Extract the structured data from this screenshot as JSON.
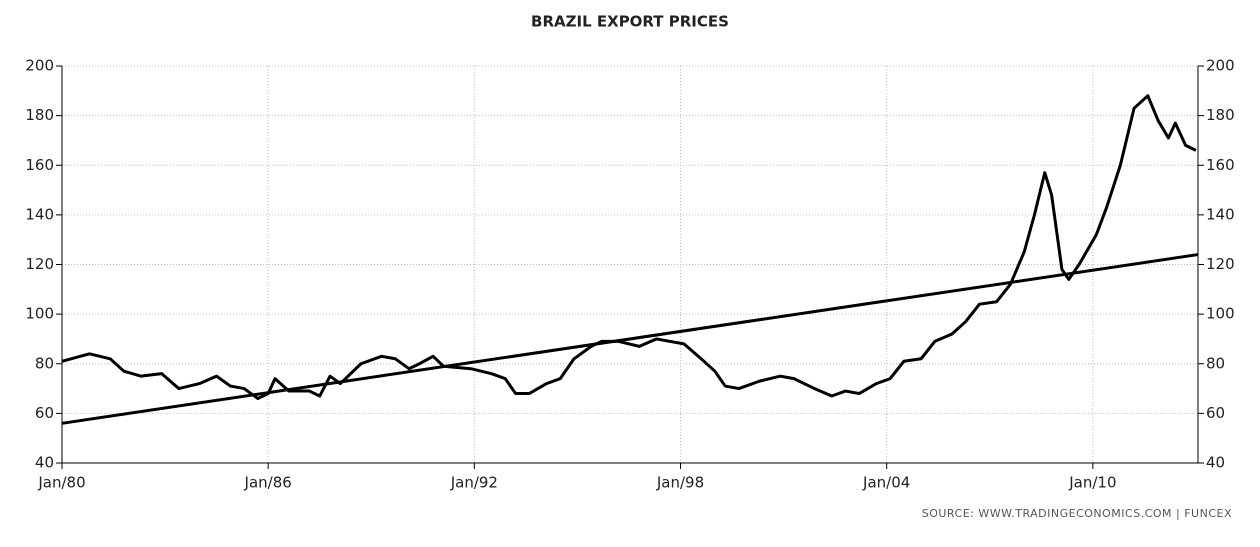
{
  "chart_data": {
    "type": "line",
    "title": "BRAZIL EXPORT PRICES",
    "source": "SOURCE:  WWW.TRADINGECONOMICS.COM  |  FUNCEX",
    "xlim": [
      1980,
      2013.06
    ],
    "xticks": [
      {
        "value": 1980,
        "label": "Jan/80"
      },
      {
        "value": 1986,
        "label": "Jan/86"
      },
      {
        "value": 1992,
        "label": "Jan/92"
      },
      {
        "value": 1998,
        "label": "Jan/98"
      },
      {
        "value": 2004,
        "label": "Jan/04"
      },
      {
        "value": 2010,
        "label": "Jan/10"
      }
    ],
    "ylim": [
      40,
      200
    ],
    "yticks": [
      40,
      60,
      80,
      100,
      120,
      140,
      160,
      180,
      200
    ],
    "y2lim": [
      40,
      200
    ],
    "y2ticks": [
      40,
      60,
      80,
      100,
      120,
      140,
      160,
      180,
      200
    ],
    "grid": true,
    "series": [
      {
        "color": "#000000",
        "x": [
          1980,
          1980.8,
          1981.4,
          1981.8,
          1982.3,
          1982.9,
          1983.4,
          1984.0,
          1984.5,
          1984.9,
          1985.3,
          1985.7,
          1986.0,
          1986.2,
          1986.6,
          1987.2,
          1987.5,
          1987.8,
          1988.1,
          1988.7,
          1989.3,
          1989.7,
          1990.1,
          1990.4,
          1990.8,
          1991.1,
          1991.9,
          1992.5,
          1992.9,
          1993.2,
          1993.6,
          1994.1,
          1994.5,
          1994.9,
          1995.4,
          1995.7,
          1996.2,
          1996.8,
          1997.3,
          1997.7,
          1998.1,
          1998.6,
          1999.0,
          1999.3,
          1999.7,
          2000.3,
          2000.9,
          2001.3,
          2001.9,
          2002.4,
          2002.8,
          2003.2,
          2003.7,
          2004.1,
          2004.5,
          2005.0,
          2005.4,
          2005.9,
          2006.3,
          2006.7,
          2007.2,
          2007.6,
          2008.0,
          2008.3,
          2008.6,
          2008.8,
          2009.1,
          2009.3,
          2009.6,
          2010.1,
          2010.4,
          2010.8,
          2011.2,
          2011.6,
          2011.9,
          2012.2,
          2012.4,
          2012.7,
          2013.0
        ],
        "values": [
          81,
          84,
          82,
          77,
          75,
          76,
          70,
          72,
          75,
          71,
          70,
          66,
          68,
          74,
          69,
          69,
          67,
          75,
          72,
          80,
          83,
          82,
          78,
          80,
          83,
          79,
          78,
          76,
          74,
          68,
          68,
          72,
          74,
          82,
          87,
          89,
          89,
          87,
          90,
          89,
          88,
          82,
          77,
          71,
          70,
          73,
          75,
          74,
          70,
          67,
          69,
          68,
          72,
          74,
          81,
          82,
          89,
          92,
          97,
          104,
          105,
          112,
          125,
          140,
          157,
          148,
          118,
          114,
          120,
          132,
          143,
          160,
          183,
          188,
          178,
          171,
          177,
          168,
          166
        ]
      },
      {
        "color": "#000000",
        "x": [
          1980,
          2013.06
        ],
        "values": [
          56,
          124
        ]
      }
    ]
  }
}
